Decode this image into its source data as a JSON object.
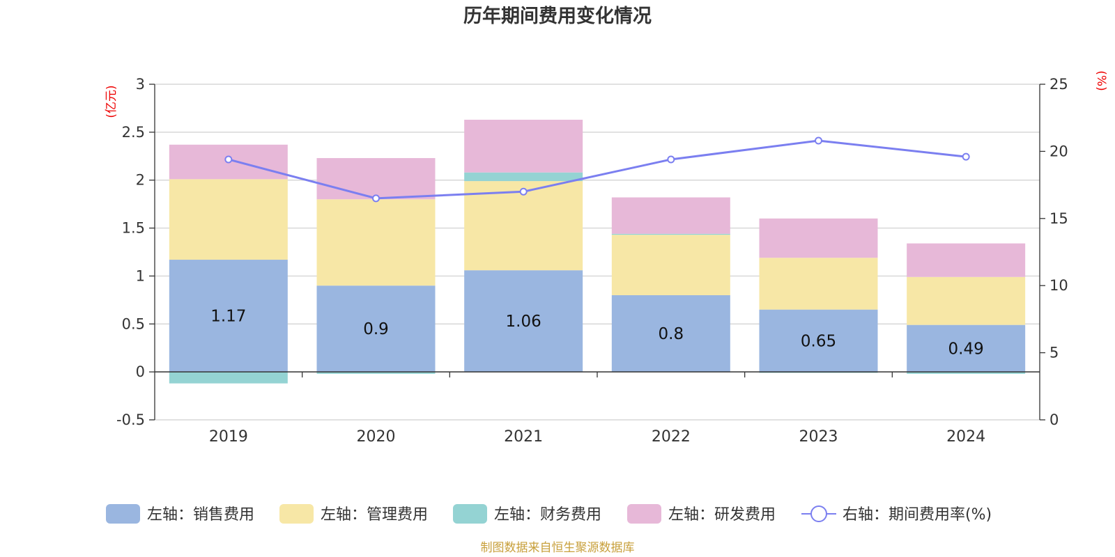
{
  "chart_data": {
    "type": "bar",
    "stacked": true,
    "title": "历年期间费用变化情况",
    "categories": [
      "2019",
      "2020",
      "2021",
      "2022",
      "2023",
      "2024"
    ],
    "left_axis": {
      "unit": "(亿元)",
      "ylim": [
        -0.5,
        3
      ],
      "ticks": [
        "-0.5",
        "0",
        "0.5",
        "1",
        "1.5",
        "2",
        "2.5",
        "3"
      ],
      "tick_values": [
        -0.5,
        0,
        0.5,
        1,
        1.5,
        2,
        2.5,
        3
      ]
    },
    "right_axis": {
      "unit": "(%)",
      "ylim": [
        0,
        25
      ],
      "ticks": [
        "0",
        "5",
        "10",
        "15",
        "20",
        "25"
      ],
      "tick_values": [
        0,
        5,
        10,
        15,
        20,
        25
      ]
    },
    "series": [
      {
        "name": "左轴：销售费用",
        "axis": "left",
        "type": "bar",
        "color": "#9ab6e0",
        "values": [
          1.17,
          0.9,
          1.06,
          0.8,
          0.65,
          0.49
        ]
      },
      {
        "name": "左轴：管理费用",
        "axis": "left",
        "type": "bar",
        "color": "#f7e7a6",
        "values": [
          0.84,
          0.9,
          0.93,
          0.63,
          0.54,
          0.5
        ]
      },
      {
        "name": "左轴：财务费用",
        "axis": "left",
        "type": "bar",
        "color": "#94d3d3",
        "values": [
          -0.12,
          -0.02,
          0.09,
          0.01,
          -0.01,
          -0.02
        ]
      },
      {
        "name": "左轴：研发费用",
        "axis": "left",
        "type": "bar",
        "color": "#e7b8d8",
        "values": [
          0.36,
          0.43,
          0.55,
          0.38,
          0.41,
          0.35
        ]
      },
      {
        "name": "右轴：期间费用率(%)",
        "axis": "right",
        "type": "line",
        "color": "#7b7ff0",
        "values": [
          19.4,
          16.5,
          17.0,
          19.4,
          20.8,
          19.6
        ]
      }
    ],
    "data_labels": [
      "1.17",
      "0.9",
      "1.06",
      "0.8",
      "0.65",
      "0.49"
    ]
  },
  "legend": {
    "items": [
      "左轴：销售费用",
      "左轴：管理费用",
      "左轴：财务费用",
      "左轴：研发费用",
      "右轴：期间费用率(%)"
    ]
  },
  "source": "制图数据来自恒生聚源数据库"
}
